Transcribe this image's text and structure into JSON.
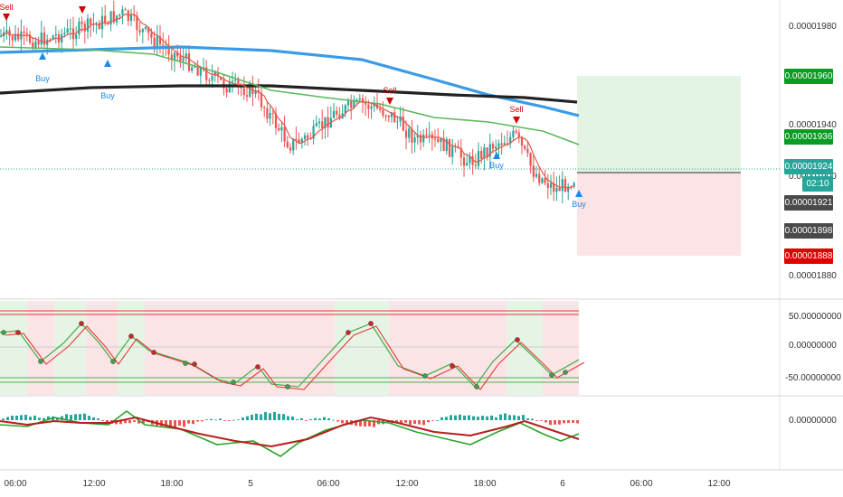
{
  "chart_data": [
    {
      "type": "candlestick",
      "title": "",
      "price_axis_labels": [
        "0.00001980",
        "0.00001940",
        "0.00001900",
        "0.00001880"
      ],
      "price_tags": [
        {
          "text": "0.00001960",
          "color": "#089981",
          "bg": "#0a9b22"
        },
        {
          "text": "0.00001936",
          "color": "#089981",
          "bg": "#0a9b22"
        },
        {
          "text": "0.00001924",
          "color": "#ffffff",
          "bg": "#26a69a"
        },
        {
          "text": "02:10",
          "color": "#ffffff",
          "bg": "#26a69a"
        },
        {
          "text": "0.00001921",
          "color": "#ffffff",
          "bg": "#4a4a4a"
        },
        {
          "text": "0.00001898",
          "color": "#ffffff",
          "bg": "#4a4a4a"
        },
        {
          "text": "0.00001888",
          "color": "#ffffff",
          "bg": "#e00000"
        }
      ],
      "signals": [
        {
          "label": "Sell",
          "type": "sell"
        },
        {
          "label": "Sell",
          "type": "sell"
        },
        {
          "label": "Buy",
          "type": "buy"
        },
        {
          "label": "Buy",
          "type": "buy"
        },
        {
          "label": "Sell",
          "type": "sell"
        },
        {
          "label": "Sell",
          "type": "sell"
        },
        {
          "label": "Buy",
          "type": "buy"
        },
        {
          "label": "Buy",
          "type": "buy"
        }
      ],
      "series": [
        {
          "name": "",
          "color": "#3a9be6"
        },
        {
          "name": "",
          "color": "#222222"
        },
        {
          "name": "",
          "color": "#5cb85c"
        },
        {
          "name": "",
          "color": "#e05a4a"
        }
      ],
      "candle_colors": {
        "up": "#26a69a",
        "down": "#ef5350"
      },
      "position_box": {
        "profit_color": "#e3f4e3",
        "loss_color": "#fbe3e6"
      }
    },
    {
      "type": "line",
      "title": "",
      "y_axis_labels": [
        "50.00000000",
        "0.00000000",
        "-50.00000000"
      ],
      "series": [
        {
          "name": "",
          "color": "#4caf50"
        },
        {
          "name": "",
          "color": "#e53935"
        }
      ]
    },
    {
      "type": "bar",
      "title": "",
      "y_axis_labels": [
        "0.00000000"
      ],
      "series": [
        {
          "name": "",
          "color": "#2aa52a"
        },
        {
          "name": "",
          "color": "#b71c1c"
        }
      ],
      "histogram_colors": {
        "positive": "#26a69a",
        "negative": "#ef5350"
      }
    }
  ],
  "time_axis": [
    "06:00",
    "12:00",
    "18:00",
    "5",
    "06:00",
    "12:00",
    "18:00",
    "6",
    "06:00",
    "12:00"
  ]
}
